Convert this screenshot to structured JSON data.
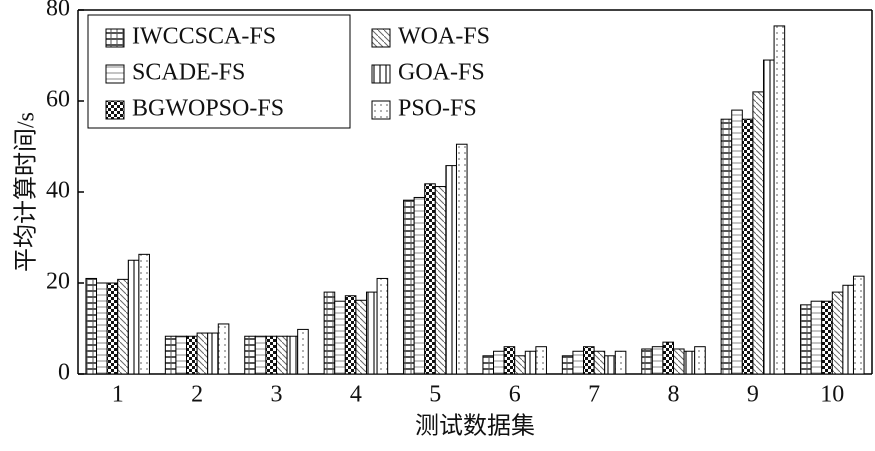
{
  "chart_data": {
    "type": "bar",
    "y_label": "平均计算时间/s",
    "x_label": "测试数据集",
    "categories": [
      "1",
      "2",
      "3",
      "4",
      "5",
      "6",
      "7",
      "8",
      "9",
      "10"
    ],
    "series": [
      {
        "name": "IWCCSCA-FS",
        "color": "#555555",
        "values": [
          21,
          8.3,
          8.3,
          18,
          38.2,
          4,
          4,
          5.5,
          56,
          15.2
        ]
      },
      {
        "name": "SCADE-FS",
        "color": "#888888",
        "values": [
          20,
          8.3,
          8.3,
          16,
          38.8,
          5,
          5,
          6,
          58,
          16
        ]
      },
      {
        "name": "BGWOPSO-FS",
        "color": "#111111",
        "values": [
          20,
          8.3,
          8.3,
          17.2,
          41.8,
          6,
          6,
          7,
          56,
          16
        ]
      },
      {
        "name": "WOA-FS",
        "color": "#666666",
        "values": [
          20.8,
          9,
          8.3,
          16.2,
          41.2,
          4,
          5,
          5.5,
          62,
          18
        ]
      },
      {
        "name": "GOA-FS",
        "color": "#777777",
        "values": [
          25,
          9,
          8.3,
          18,
          45.8,
          5,
          4,
          5,
          69,
          19.5
        ]
      },
      {
        "name": "PSO-FS",
        "color": "#999999",
        "values": [
          26.3,
          11,
          9.8,
          21,
          50.5,
          6,
          5,
          6,
          76.5,
          21.5
        ]
      }
    ],
    "ylim": [
      0,
      80
    ],
    "yticks": [
      0,
      20,
      40,
      60,
      80
    ],
    "legend": "upper left"
  }
}
